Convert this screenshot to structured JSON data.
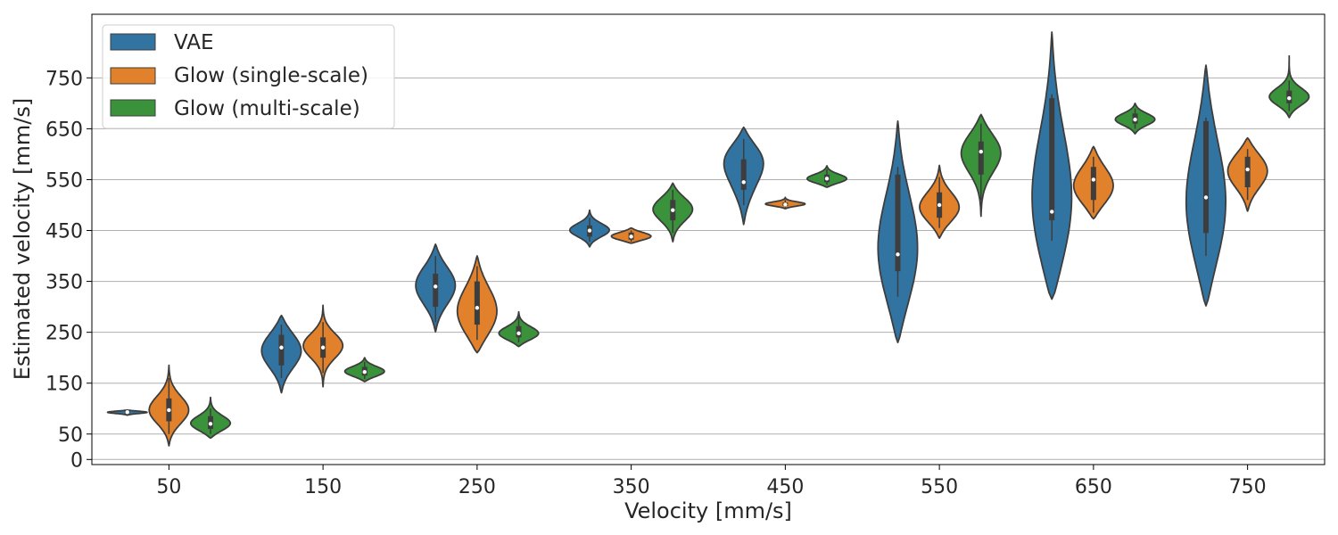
{
  "chart_data": {
    "type": "violin",
    "title": "",
    "xlabel": "Velocity [mm/s]",
    "ylabel": "Estimated velocity [mm/s]",
    "categories": [
      "50",
      "150",
      "250",
      "350",
      "450",
      "550",
      "650",
      "750"
    ],
    "yticks": [
      "0",
      "50",
      "150",
      "250",
      "350",
      "450",
      "550",
      "650",
      "750"
    ],
    "ylim": [
      -10,
      875
    ],
    "grid": "y",
    "legend_position": "top-left",
    "series": [
      {
        "name": "VAE",
        "color": "#3274a1",
        "violins": [
          {
            "min": 87,
            "max": 97,
            "q1": 91,
            "q3": 95,
            "median": 93,
            "wmin": 89,
            "wmax": 96,
            "mode": 93
          },
          {
            "min": 131,
            "max": 283,
            "q1": 185,
            "q3": 245,
            "median": 220,
            "wmin": 160,
            "wmax": 265,
            "mode": 215
          },
          {
            "min": 251,
            "max": 423,
            "q1": 300,
            "q3": 365,
            "median": 340,
            "wmin": 270,
            "wmax": 400,
            "mode": 345
          },
          {
            "min": 418,
            "max": 490,
            "q1": 438,
            "q3": 460,
            "median": 450,
            "wmin": 428,
            "wmax": 475,
            "mode": 450
          },
          {
            "min": 462,
            "max": 653,
            "q1": 530,
            "q3": 590,
            "median": 545,
            "wmin": 500,
            "wmax": 630,
            "mode": 600
          },
          {
            "min": 230,
            "max": 665,
            "q1": 370,
            "q3": 560,
            "median": 403,
            "wmin": 320,
            "wmax": 575,
            "mode": 400
          },
          {
            "min": 315,
            "max": 840,
            "q1": 470,
            "q3": 710,
            "median": 487,
            "wmin": 430,
            "wmax": 718,
            "mode": 480
          },
          {
            "min": 302,
            "max": 775,
            "q1": 445,
            "q3": 665,
            "median": 515,
            "wmin": 400,
            "wmax": 672,
            "mode": 480
          }
        ]
      },
      {
        "name": "Glow (single-scale)",
        "color": "#e1812c",
        "violins": [
          {
            "min": 27,
            "max": 185,
            "q1": 75,
            "q3": 120,
            "median": 97,
            "wmin": 50,
            "wmax": 160,
            "mode": 95
          },
          {
            "min": 143,
            "max": 303,
            "q1": 200,
            "q3": 240,
            "median": 220,
            "wmin": 170,
            "wmax": 270,
            "mode": 225
          },
          {
            "min": 210,
            "max": 400,
            "q1": 265,
            "q3": 350,
            "median": 298,
            "wmin": 235,
            "wmax": 380,
            "mode": 280
          },
          {
            "min": 425,
            "max": 455,
            "q1": 432,
            "q3": 446,
            "median": 438,
            "wmin": 428,
            "wmax": 450,
            "mode": 438
          },
          {
            "min": 493,
            "max": 515,
            "q1": 498,
            "q3": 505,
            "median": 501,
            "wmin": 495,
            "wmax": 510,
            "mode": 502
          },
          {
            "min": 435,
            "max": 578,
            "q1": 475,
            "q3": 525,
            "median": 500,
            "wmin": 455,
            "wmax": 555,
            "mode": 490
          },
          {
            "min": 473,
            "max": 615,
            "q1": 510,
            "q3": 575,
            "median": 550,
            "wmin": 485,
            "wmax": 595,
            "mode": 530
          },
          {
            "min": 488,
            "max": 632,
            "q1": 535,
            "q3": 595,
            "median": 570,
            "wmin": 510,
            "wmax": 610,
            "mode": 570
          }
        ]
      },
      {
        "name": "Glow (multi-scale)",
        "color": "#3a923a",
        "violins": [
          {
            "min": 42,
            "max": 122,
            "q1": 60,
            "q3": 85,
            "median": 70,
            "wmin": 50,
            "wmax": 100,
            "mode": 68
          },
          {
            "min": 153,
            "max": 200,
            "q1": 165,
            "q3": 182,
            "median": 172,
            "wmin": 158,
            "wmax": 192,
            "mode": 172
          },
          {
            "min": 222,
            "max": 290,
            "q1": 240,
            "q3": 262,
            "median": 248,
            "wmin": 230,
            "wmax": 280,
            "mode": 245
          },
          {
            "min": 428,
            "max": 543,
            "q1": 470,
            "q3": 510,
            "median": 490,
            "wmin": 445,
            "wmax": 530,
            "mode": 495
          },
          {
            "min": 535,
            "max": 577,
            "q1": 545,
            "q3": 560,
            "median": 552,
            "wmin": 540,
            "wmax": 570,
            "mode": 550
          },
          {
            "min": 478,
            "max": 678,
            "q1": 560,
            "q3": 625,
            "median": 605,
            "wmin": 510,
            "wmax": 660,
            "mode": 610
          },
          {
            "min": 640,
            "max": 700,
            "q1": 660,
            "q3": 680,
            "median": 668,
            "wmin": 650,
            "wmax": 690,
            "mode": 668
          },
          {
            "min": 672,
            "max": 793,
            "q1": 700,
            "q3": 725,
            "median": 710,
            "wmin": 685,
            "wmax": 745,
            "mode": 710
          }
        ]
      }
    ]
  }
}
